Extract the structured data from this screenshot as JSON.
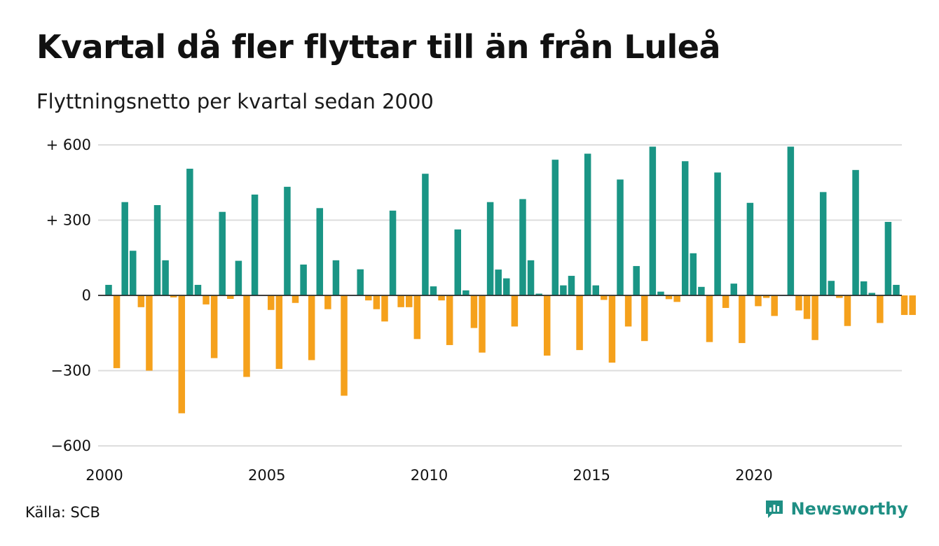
{
  "title": "Kvartal då fler flyttar till än från Luleå",
  "subtitle": "Flyttningsnetto per kvartal sedan 2000",
  "source": "Källa: SCB",
  "brand": "Newsworthy",
  "colors": {
    "positive": "#1a9585",
    "negative": "#f5a11c",
    "grid": "#dddddd",
    "brand": "#1f8f84"
  },
  "chart_data": {
    "type": "bar",
    "x_start": 2000.0,
    "x_step": 0.25,
    "ylim": [
      -600,
      600
    ],
    "grid": true,
    "y_ticks": [
      {
        "value": 600,
        "label": "+ 600"
      },
      {
        "value": 300,
        "label": "+ 300"
      },
      {
        "value": 0,
        "label": "0"
      },
      {
        "value": -300,
        "label": "−300"
      },
      {
        "value": -600,
        "label": "−600"
      }
    ],
    "x_ticks": [
      {
        "value": 2000,
        "label": "2000"
      },
      {
        "value": 2005,
        "label": "2005"
      },
      {
        "value": 2010,
        "label": "2010"
      },
      {
        "value": 2015,
        "label": "2015"
      },
      {
        "value": 2020,
        "label": "2020"
      }
    ],
    "values": [
      42,
      -290,
      372,
      178,
      -47,
      -300,
      360,
      140,
      -8,
      -470,
      505,
      42,
      -36,
      -250,
      333,
      -14,
      138,
      -325,
      402,
      0,
      -58,
      -293,
      433,
      -30,
      123,
      -258,
      348,
      -55,
      140,
      -400,
      0,
      104,
      -20,
      -55,
      -104,
      338,
      -47,
      -47,
      -174,
      485,
      36,
      -20,
      -198,
      263,
      20,
      -130,
      -228,
      372,
      103,
      68,
      -124,
      384,
      140,
      7,
      -240,
      541,
      40,
      78,
      -218,
      565,
      40,
      -18,
      -268,
      462,
      -124,
      117,
      -182,
      593,
      15,
      -15,
      -26,
      535,
      168,
      34,
      -186,
      490,
      -50,
      47,
      -190,
      369,
      -43,
      -10,
      -82,
      0,
      593,
      -60,
      -94,
      -178,
      412,
      58,
      -10,
      -122,
      500,
      56,
      10,
      -110,
      293,
      42,
      -78,
      -78
    ]
  }
}
